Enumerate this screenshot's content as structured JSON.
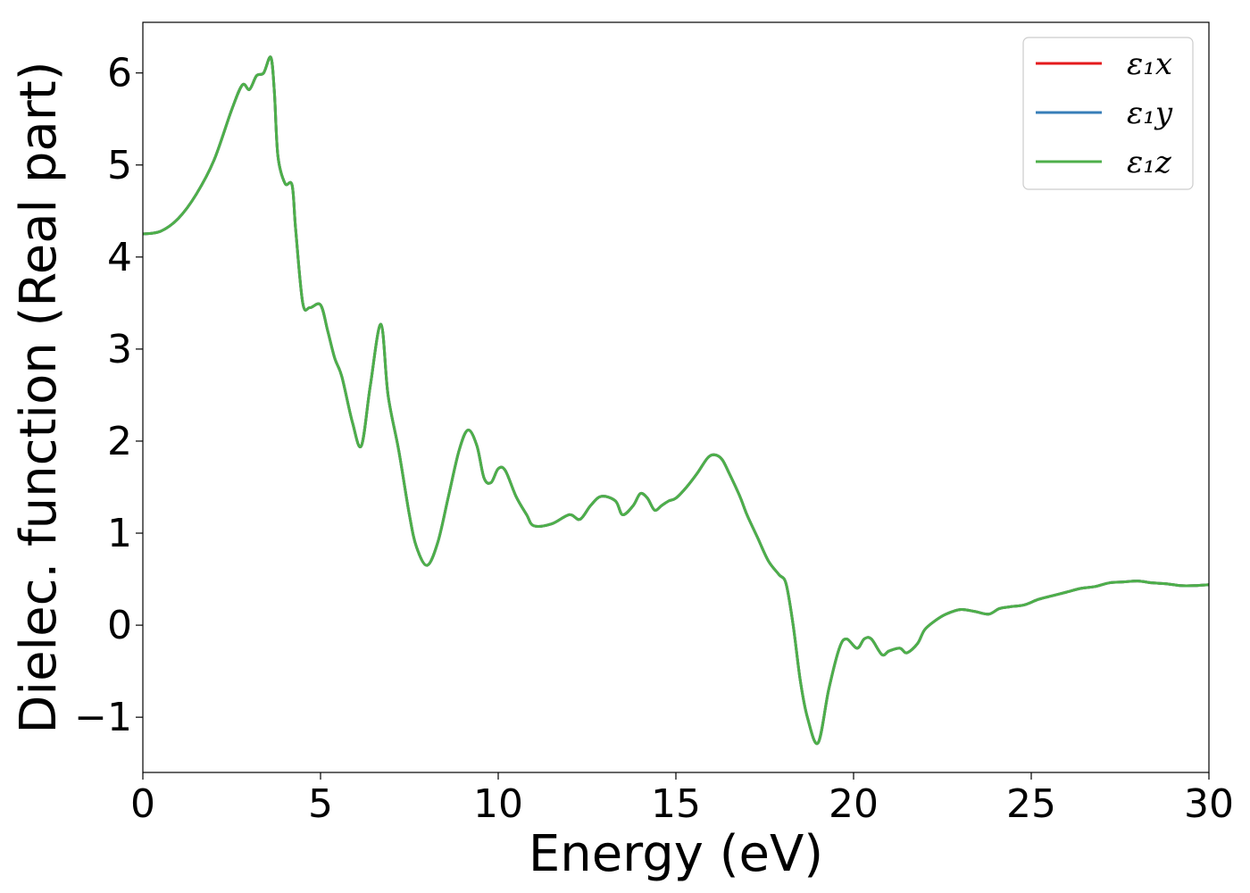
{
  "chart_data": {
    "type": "line",
    "title": "",
    "xlabel": "Energy (eV)",
    "ylabel": "Dielec. function (Real part)",
    "xlim": [
      0,
      30
    ],
    "ylim": [
      -1.6,
      6.55
    ],
    "x_ticks": [
      0,
      5,
      10,
      15,
      20,
      25,
      30
    ],
    "y_ticks": [
      -1,
      0,
      1,
      2,
      3,
      4,
      5,
      6
    ],
    "x_tick_labels": [
      "0",
      "5",
      "10",
      "15",
      "20",
      "25",
      "30"
    ],
    "y_tick_labels": [
      "−1",
      "0",
      "1",
      "2",
      "3",
      "4",
      "5",
      "6"
    ],
    "grid": false,
    "legend_position": "top-right",
    "series": [
      {
        "name": "ε₁x",
        "color": "#e41a1c",
        "x_ref": "shared",
        "y_ref": "shared"
      },
      {
        "name": "ε₁y",
        "color": "#377eb8",
        "x_ref": "shared",
        "y_ref": "shared"
      },
      {
        "name": "ε₁z",
        "color": "#4daf4a",
        "x_ref": "shared",
        "y_ref": "shared"
      }
    ],
    "shared_x": [
      0,
      0.5,
      1.0,
      1.5,
      2.0,
      2.5,
      2.8,
      3.0,
      3.2,
      3.4,
      3.6,
      3.7,
      3.8,
      4.0,
      4.2,
      4.3,
      4.5,
      4.7,
      5.0,
      5.2,
      5.4,
      5.6,
      5.9,
      6.15,
      6.4,
      6.7,
      6.9,
      7.2,
      7.5,
      7.7,
      8.0,
      8.3,
      8.6,
      8.9,
      9.15,
      9.4,
      9.6,
      9.8,
      10.0,
      10.2,
      10.5,
      10.8,
      11.0,
      11.5,
      12.0,
      12.3,
      12.6,
      12.9,
      13.3,
      13.5,
      13.8,
      14.0,
      14.2,
      14.4,
      14.6,
      14.8,
      15.0,
      15.3,
      15.6,
      15.9,
      16.1,
      16.3,
      16.5,
      16.8,
      17.0,
      17.3,
      17.6,
      17.9,
      18.1,
      18.3,
      18.5,
      18.7,
      19.0,
      19.3,
      19.6,
      19.8,
      20.1,
      20.3,
      20.5,
      20.8,
      21.0,
      21.3,
      21.5,
      21.8,
      22.0,
      22.3,
      22.6,
      23.0,
      23.4,
      23.8,
      24.1,
      24.4,
      24.8,
      25.2,
      25.6,
      26.0,
      26.4,
      26.8,
      27.2,
      27.6,
      28.0,
      28.4,
      28.8,
      29.2,
      29.6,
      30.0
    ],
    "shared_y": [
      4.25,
      4.28,
      4.42,
      4.68,
      5.05,
      5.6,
      5.87,
      5.82,
      5.97,
      6.0,
      6.17,
      5.8,
      5.1,
      4.8,
      4.78,
      4.3,
      3.5,
      3.45,
      3.48,
      3.2,
      2.9,
      2.7,
      2.2,
      1.95,
      2.6,
      3.27,
      2.5,
      1.9,
      1.2,
      0.85,
      0.65,
      0.9,
      1.4,
      1.9,
      2.12,
      1.95,
      1.6,
      1.55,
      1.7,
      1.68,
      1.4,
      1.2,
      1.08,
      1.1,
      1.2,
      1.15,
      1.3,
      1.4,
      1.35,
      1.2,
      1.3,
      1.43,
      1.38,
      1.25,
      1.3,
      1.35,
      1.38,
      1.5,
      1.65,
      1.82,
      1.85,
      1.8,
      1.65,
      1.4,
      1.2,
      0.95,
      0.7,
      0.55,
      0.45,
      0.0,
      -0.6,
      -1.0,
      -1.28,
      -0.7,
      -0.25,
      -0.15,
      -0.25,
      -0.15,
      -0.15,
      -0.32,
      -0.28,
      -0.25,
      -0.3,
      -0.2,
      -0.05,
      0.05,
      0.12,
      0.17,
      0.15,
      0.12,
      0.18,
      0.2,
      0.22,
      0.28,
      0.32,
      0.36,
      0.4,
      0.42,
      0.46,
      0.47,
      0.48,
      0.46,
      0.45,
      0.43,
      0.43,
      0.44
    ]
  }
}
